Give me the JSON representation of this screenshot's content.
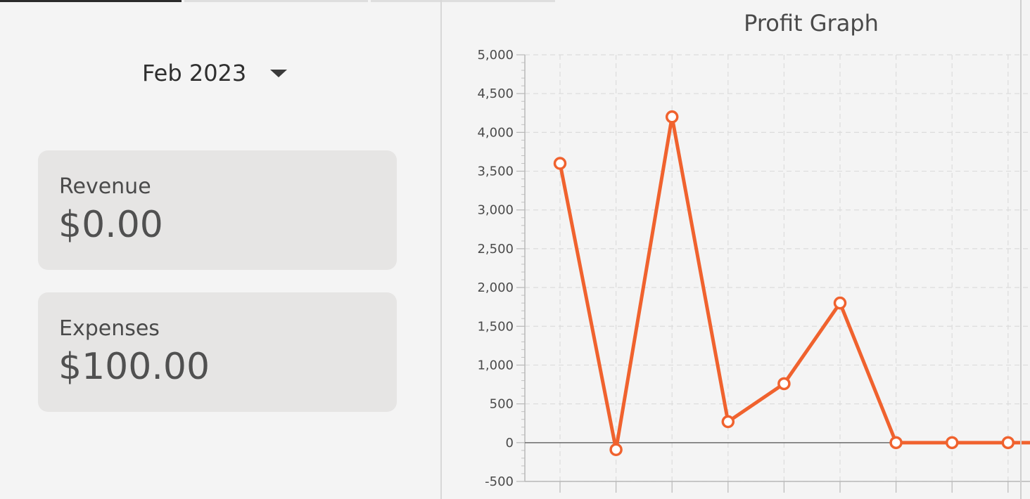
{
  "tabs": [
    {
      "label": "",
      "active": true
    },
    {
      "label": "",
      "active": false
    },
    {
      "label": "",
      "active": false
    }
  ],
  "month_selector": {
    "value": "Feb 2023",
    "icon": "caret-down-icon"
  },
  "revenue": {
    "label": "Revenue",
    "value": "$0.00"
  },
  "expenses": {
    "label": "Expenses",
    "value": "$100.00"
  },
  "colors": {
    "line": "#f0622e",
    "card": "#e6e5e4",
    "background": "#f4f4f4"
  },
  "chart_data": {
    "type": "line",
    "title": "Profit Graph",
    "xlabel": "",
    "ylabel": "",
    "ylim": [
      -500,
      5000
    ],
    "ytick_labels": [
      "-500",
      "0",
      "500",
      "1,000",
      "1,500",
      "2,000",
      "2,500",
      "3,000",
      "3,500",
      "4,000",
      "4,500",
      "5,000"
    ],
    "x": [
      1,
      2,
      3,
      4,
      5,
      6,
      7,
      8,
      9
    ],
    "series": [
      {
        "values": [
          3600,
          -90,
          4200,
          270,
          760,
          1800,
          0,
          0,
          0
        ]
      }
    ],
    "grid": true
  }
}
